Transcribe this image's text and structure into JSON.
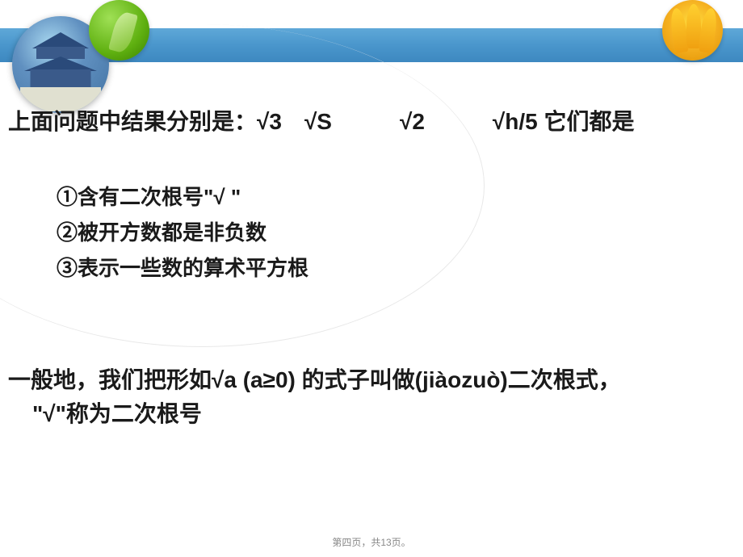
{
  "header": {
    "bar_color": "#4a96cc"
  },
  "content": {
    "intro": "上面问题中结果分别是：√3　√S　　　√2　　　√h/5  它们都是",
    "items": [
      "①含有二次根号\"√ \"",
      "②被开方数都是非负数",
      "③表示一些数的算术平方根"
    ],
    "definition_line1": "一般地，我们把形如√a (a≥0)  的式子叫做(jiàozuò)二次根式，",
    "definition_line2": "\"√\"称为二次根号"
  },
  "footer": {
    "text": "第四页，共13页。"
  },
  "styles": {
    "text_color": "#1a1a1a",
    "font_size_main": 28,
    "font_size_list": 26,
    "font_size_footer": 12,
    "background": "#ffffff"
  }
}
